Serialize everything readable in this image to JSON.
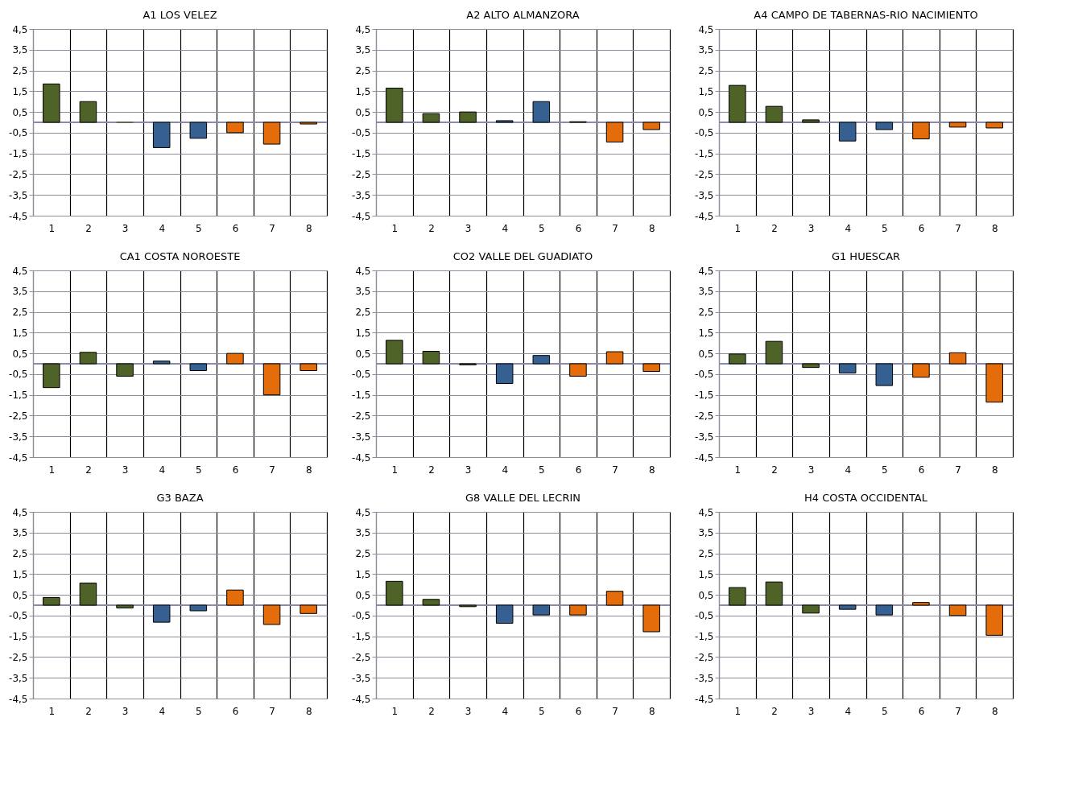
{
  "chart_data": [
    {
      "type": "bar",
      "title": "A1 LOS VELEZ",
      "categories": [
        "1",
        "2",
        "3",
        "4",
        "5",
        "6",
        "7",
        "8"
      ],
      "values": [
        1.85,
        1.0,
        0,
        -1.22,
        -0.77,
        -0.5,
        -1.05,
        -0.08
      ],
      "colors": [
        "#4f6228",
        "#4f6228",
        "#4f6228",
        "#366092",
        "#366092",
        "#e46c0a",
        "#e46c0a",
        "#e46c0a"
      ],
      "ylim": [
        -4.5,
        4.5
      ],
      "yticks": [
        {
          "value": 4.5,
          "label": "4,5"
        },
        {
          "value": 3.5,
          "label": "3,5"
        },
        {
          "value": 2.5,
          "label": "2,5"
        },
        {
          "value": 1.5,
          "label": "1,5"
        },
        {
          "value": 0.5,
          "label": "0,5"
        },
        {
          "value": -0.5,
          "label": "-0,5"
        },
        {
          "value": -1.5,
          "label": "-1,5"
        },
        {
          "value": -2.5,
          "label": "-2,5"
        },
        {
          "value": -3.5,
          "label": "-3,5"
        },
        {
          "value": -4.5,
          "label": "-4,5"
        }
      ],
      "grid": true
    },
    {
      "type": "bar",
      "title": "A2 ALTO ALMANZORA",
      "categories": [
        "1",
        "2",
        "3",
        "4",
        "5",
        "6",
        "7",
        "8"
      ],
      "values": [
        1.65,
        0.42,
        0.5,
        0.08,
        1.0,
        0.03,
        -0.95,
        -0.35
      ],
      "colors": [
        "#4f6228",
        "#4f6228",
        "#4f6228",
        "#366092",
        "#366092",
        "#e46c0a",
        "#e46c0a",
        "#e46c0a"
      ],
      "ylim": [
        -4.5,
        4.5
      ],
      "yticks": [
        {
          "value": 4.5,
          "label": "4,5"
        },
        {
          "value": 3.5,
          "label": "3,5"
        },
        {
          "value": 2.5,
          "label": "2,5"
        },
        {
          "value": 1.5,
          "label": "1,5"
        },
        {
          "value": 0.5,
          "label": "0,5"
        },
        {
          "value": -0.5,
          "label": "-0,5"
        },
        {
          "value": -1.5,
          "label": "-1,5"
        },
        {
          "value": -2.5,
          "label": "-2,5"
        },
        {
          "value": -3.5,
          "label": "-3,5"
        },
        {
          "value": -4.5,
          "label": "-4,5"
        }
      ],
      "grid": true
    },
    {
      "type": "bar",
      "title": "A4 CAMPO DE TABERNAS-RIO NACIMIENTO",
      "categories": [
        "1",
        "2",
        "3",
        "4",
        "5",
        "6",
        "7",
        "8"
      ],
      "values": [
        1.78,
        0.77,
        0.12,
        -0.9,
        -0.35,
        -0.8,
        -0.23,
        -0.27
      ],
      "colors": [
        "#4f6228",
        "#4f6228",
        "#4f6228",
        "#366092",
        "#366092",
        "#e46c0a",
        "#e46c0a",
        "#e46c0a"
      ],
      "ylim": [
        -4.5,
        4.5
      ],
      "yticks": [
        {
          "value": 4.5,
          "label": "4,5"
        },
        {
          "value": 3.5,
          "label": "3,5"
        },
        {
          "value": 2.5,
          "label": "2,5"
        },
        {
          "value": 1.5,
          "label": "1,5"
        },
        {
          "value": 0.5,
          "label": "0,5"
        },
        {
          "value": -0.5,
          "label": "-0,5"
        },
        {
          "value": -1.5,
          "label": "-1,5"
        },
        {
          "value": -2.5,
          "label": "-2,5"
        },
        {
          "value": -3.5,
          "label": "-3,5"
        },
        {
          "value": -4.5,
          "label": "-4,5"
        }
      ],
      "grid": true
    },
    {
      "type": "bar",
      "title": "CA1 COSTA NOROESTE",
      "categories": [
        "1",
        "2",
        "3",
        "4",
        "5",
        "6",
        "7",
        "8"
      ],
      "values": [
        -1.15,
        0.55,
        -0.6,
        0.13,
        -0.33,
        0.5,
        -1.5,
        -0.33
      ],
      "colors": [
        "#4f6228",
        "#4f6228",
        "#4f6228",
        "#366092",
        "#366092",
        "#e46c0a",
        "#e46c0a",
        "#e46c0a"
      ],
      "ylim": [
        -4.5,
        4.5
      ],
      "yticks": [
        {
          "value": 4.5,
          "label": "4,5"
        },
        {
          "value": 3.5,
          "label": "3,5"
        },
        {
          "value": 2.5,
          "label": "2,5"
        },
        {
          "value": 1.5,
          "label": "1,5"
        },
        {
          "value": 0.5,
          "label": "0,5"
        },
        {
          "value": -0.5,
          "label": "-0,5"
        },
        {
          "value": -1.5,
          "label": "-1,5"
        },
        {
          "value": -2.5,
          "label": "-2,5"
        },
        {
          "value": -3.5,
          "label": "-3,5"
        },
        {
          "value": -4.5,
          "label": "-4,5"
        }
      ],
      "grid": true
    },
    {
      "type": "bar",
      "title": "CO2 VALLE DEL GUADIATO",
      "categories": [
        "1",
        "2",
        "3",
        "4",
        "5",
        "6",
        "7",
        "8"
      ],
      "values": [
        1.13,
        0.6,
        -0.05,
        -0.95,
        0.4,
        -0.6,
        0.58,
        -0.37
      ],
      "colors": [
        "#4f6228",
        "#4f6228",
        "#4f6228",
        "#366092",
        "#366092",
        "#e46c0a",
        "#e46c0a",
        "#e46c0a"
      ],
      "ylim": [
        -4.5,
        4.5
      ],
      "yticks": [
        {
          "value": 4.5,
          "label": "4,5"
        },
        {
          "value": 3.5,
          "label": "3,5"
        },
        {
          "value": 2.5,
          "label": "2,5"
        },
        {
          "value": 1.5,
          "label": "1,5"
        },
        {
          "value": 0.5,
          "label": "0,5"
        },
        {
          "value": -0.5,
          "label": "-0,5"
        },
        {
          "value": -1.5,
          "label": "-1,5"
        },
        {
          "value": -2.5,
          "label": "-2,5"
        },
        {
          "value": -3.5,
          "label": "-3,5"
        },
        {
          "value": -4.5,
          "label": "-4,5"
        }
      ],
      "grid": true
    },
    {
      "type": "bar",
      "title": "G1 HUESCAR",
      "categories": [
        "1",
        "2",
        "3",
        "4",
        "5",
        "6",
        "7",
        "8"
      ],
      "values": [
        0.47,
        1.08,
        -0.18,
        -0.45,
        -1.05,
        -0.65,
        0.53,
        -1.85
      ],
      "colors": [
        "#4f6228",
        "#4f6228",
        "#4f6228",
        "#366092",
        "#366092",
        "#e46c0a",
        "#e46c0a",
        "#e46c0a"
      ],
      "ylim": [
        -4.5,
        4.5
      ],
      "yticks": [
        {
          "value": 4.5,
          "label": "4,5"
        },
        {
          "value": 3.5,
          "label": "3,5"
        },
        {
          "value": 2.5,
          "label": "2,5"
        },
        {
          "value": 1.5,
          "label": "1,5"
        },
        {
          "value": 0.5,
          "label": "0,5"
        },
        {
          "value": -0.5,
          "label": "-0,5"
        },
        {
          "value": -1.5,
          "label": "-1,5"
        },
        {
          "value": -2.5,
          "label": "-2,5"
        },
        {
          "value": -3.5,
          "label": "-3,5"
        },
        {
          "value": -4.5,
          "label": "-4,5"
        }
      ],
      "grid": true
    },
    {
      "type": "bar",
      "title": "G3 BAZA",
      "categories": [
        "1",
        "2",
        "3",
        "4",
        "5",
        "6",
        "7",
        "8"
      ],
      "values": [
        0.37,
        1.07,
        -0.13,
        -0.82,
        -0.27,
        0.73,
        -0.93,
        -0.4
      ],
      "colors": [
        "#4f6228",
        "#4f6228",
        "#4f6228",
        "#366092",
        "#366092",
        "#e46c0a",
        "#e46c0a",
        "#e46c0a"
      ],
      "ylim": [
        -4.5,
        4.5
      ],
      "yticks": [
        {
          "value": 4.5,
          "label": "4,5"
        },
        {
          "value": 3.5,
          "label": "3,5"
        },
        {
          "value": 2.5,
          "label": "2,5"
        },
        {
          "value": 1.5,
          "label": "1,5"
        },
        {
          "value": 0.5,
          "label": "0,5"
        },
        {
          "value": -0.5,
          "label": "-0,5"
        },
        {
          "value": -1.5,
          "label": "-1,5"
        },
        {
          "value": -2.5,
          "label": "-2,5"
        },
        {
          "value": -3.5,
          "label": "-3,5"
        },
        {
          "value": -4.5,
          "label": "-4,5"
        }
      ],
      "grid": true
    },
    {
      "type": "bar",
      "title": "G8 VALLE DEL LECRIN",
      "categories": [
        "1",
        "2",
        "3",
        "4",
        "5",
        "6",
        "7",
        "8"
      ],
      "values": [
        1.15,
        0.28,
        -0.07,
        -0.87,
        -0.47,
        -0.47,
        0.67,
        -1.28
      ],
      "colors": [
        "#4f6228",
        "#4f6228",
        "#4f6228",
        "#366092",
        "#366092",
        "#e46c0a",
        "#e46c0a",
        "#e46c0a"
      ],
      "ylim": [
        -4.5,
        4.5
      ],
      "yticks": [
        {
          "value": 4.5,
          "label": "4,5"
        },
        {
          "value": 3.5,
          "label": "3,5"
        },
        {
          "value": 2.5,
          "label": "2,5"
        },
        {
          "value": 1.5,
          "label": "1,5"
        },
        {
          "value": 0.5,
          "label": "0,5"
        },
        {
          "value": -0.5,
          "label": "-0,5"
        },
        {
          "value": -1.5,
          "label": "-1,5"
        },
        {
          "value": -2.5,
          "label": "-2,5"
        },
        {
          "value": -3.5,
          "label": "-3,5"
        },
        {
          "value": -4.5,
          "label": "-4,5"
        }
      ],
      "grid": true
    },
    {
      "type": "bar",
      "title": "H4 COSTA OCCIDENTAL",
      "categories": [
        "1",
        "2",
        "3",
        "4",
        "5",
        "6",
        "7",
        "8"
      ],
      "values": [
        0.85,
        1.12,
        -0.38,
        -0.2,
        -0.47,
        0.13,
        -0.5,
        -1.45
      ],
      "colors": [
        "#4f6228",
        "#4f6228",
        "#4f6228",
        "#366092",
        "#366092",
        "#e46c0a",
        "#e46c0a",
        "#e46c0a"
      ],
      "ylim": [
        -4.5,
        4.5
      ],
      "yticks": [
        {
          "value": 4.5,
          "label": "4,5"
        },
        {
          "value": 3.5,
          "label": "3,5"
        },
        {
          "value": 2.5,
          "label": "2,5"
        },
        {
          "value": 1.5,
          "label": "1,5"
        },
        {
          "value": 0.5,
          "label": "0,5"
        },
        {
          "value": -0.5,
          "label": "-0,5"
        },
        {
          "value": -1.5,
          "label": "-1,5"
        },
        {
          "value": -2.5,
          "label": "-2,5"
        },
        {
          "value": -3.5,
          "label": "-3,5"
        },
        {
          "value": -4.5,
          "label": "-4,5"
        }
      ],
      "grid": true
    }
  ]
}
